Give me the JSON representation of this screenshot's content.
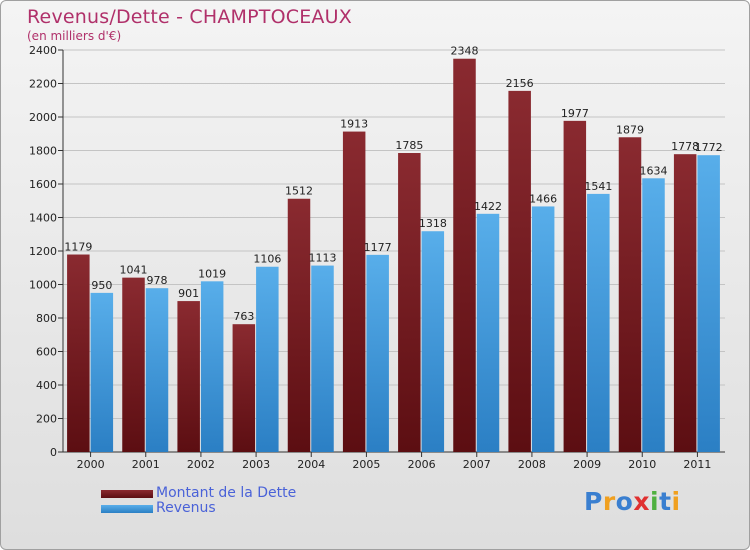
{
  "header": {
    "title": "Revenus/Dette - CHAMPTOCEAUX",
    "subtitle": "(en milliers d'€)"
  },
  "colors": {
    "dette": "#7a1f25",
    "revenus": "#4da3e3",
    "title": "#b0306a",
    "legend_text": "#4a62d8"
  },
  "chart_data": {
    "type": "bar",
    "title": "Revenus/Dette - CHAMPTOCEAUX",
    "ylabel": "(en milliers d'€)",
    "xlabel": "",
    "ylim": [
      0,
      2400
    ],
    "yticks": [
      0,
      200,
      400,
      600,
      800,
      1000,
      1200,
      1400,
      1600,
      1800,
      2000,
      2200,
      2400
    ],
    "grid": true,
    "categories": [
      "2000",
      "2001",
      "2002",
      "2003",
      "2004",
      "2005",
      "2006",
      "2007",
      "2008",
      "2009",
      "2010",
      "2011"
    ],
    "series": [
      {
        "name": "Montant de la Dette",
        "values": [
          1179,
          1041,
          901,
          763,
          1512,
          1913,
          1785,
          2348,
          2156,
          1977,
          1879,
          1778
        ]
      },
      {
        "name": "Revenus",
        "values": [
          950,
          978,
          1019,
          1106,
          1113,
          1177,
          1318,
          1422,
          1466,
          1541,
          1634,
          1772
        ]
      }
    ],
    "legend": "bottom-left"
  },
  "legend": {
    "items": [
      {
        "label": "Montant de la Dette"
      },
      {
        "label": "Revenus"
      }
    ]
  },
  "logo": {
    "letters": [
      "P",
      "r",
      "o",
      "x",
      "i",
      "t",
      "i"
    ],
    "colors": [
      "#3a7fd0",
      "#f0a020",
      "#3a7fd0",
      "#e03030",
      "#50b040",
      "#3a7fd0",
      "#f0a020"
    ]
  }
}
